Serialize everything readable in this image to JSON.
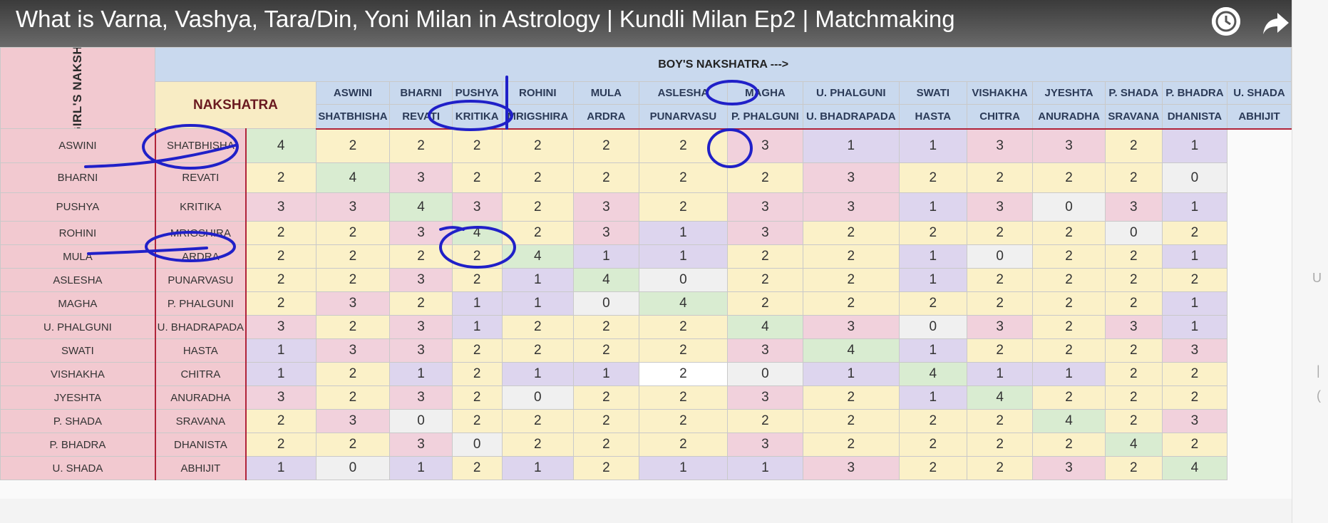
{
  "video": {
    "title": "What is Varna, Vashya, Tara/Din, Yoni Milan in Astrology | Kundli Milan Ep2 | Matchmaking"
  },
  "sheet": {
    "boy_header": "BOY'S NAKSHATRA --->",
    "girl_header": "<-----GIRL'S NAKSHATRA",
    "nakshatra_header": "NAKSHATRA",
    "columns": [
      {
        "top": "ASWINI",
        "bottom": "SHATBHISHA"
      },
      {
        "top": "BHARNI",
        "bottom": "REVATI"
      },
      {
        "top": "PUSHYA",
        "bottom": "KRITIKA"
      },
      {
        "top": "ROHINI",
        "bottom": "MRIGSHIRA"
      },
      {
        "top": "MULA",
        "bottom": "ARDRA"
      },
      {
        "top": "ASLESHA",
        "bottom": "PUNARVASU"
      },
      {
        "top": "MAGHA",
        "bottom": "P. PHALGUNI"
      },
      {
        "top": "U. PHALGUNI",
        "bottom": "U. BHADRAPADA"
      },
      {
        "top": "SWATI",
        "bottom": "HASTA"
      },
      {
        "top": "VISHAKHA",
        "bottom": "CHITRA"
      },
      {
        "top": "JYESHTA",
        "bottom": "ANURADHA"
      },
      {
        "top": "P. SHADA",
        "bottom": "SRAVANA"
      },
      {
        "top": "P. BHADRA",
        "bottom": "DHANISTA"
      },
      {
        "top": "U. SHADA",
        "bottom": "ABHIJIT"
      }
    ],
    "rows": [
      {
        "a": "ASWINI",
        "b": "SHATBHISHA",
        "values": [
          "4",
          "2",
          "2",
          "2",
          "2",
          "2",
          "2",
          "3",
          "1",
          "1",
          "3",
          "3",
          "2",
          "1"
        ],
        "colors": [
          "g",
          "y",
          "y",
          "y",
          "y",
          "y",
          "y",
          "p",
          "l",
          "l",
          "p",
          "p",
          "y",
          "l"
        ]
      },
      {
        "a": "BHARNI",
        "b": "REVATI",
        "values": [
          "2",
          "4",
          "3",
          "2",
          "2",
          "2",
          "2",
          "2",
          "3",
          "2",
          "2",
          "2",
          "2",
          "0"
        ],
        "colors": [
          "y",
          "g",
          "p",
          "y",
          "y",
          "y",
          "y",
          "y",
          "p",
          "y",
          "y",
          "y",
          "y",
          "w"
        ]
      },
      {
        "a": "PUSHYA",
        "b": "KRITIKA",
        "values": [
          "3",
          "3",
          "4",
          "3",
          "2",
          "3",
          "2",
          "3",
          "3",
          "1",
          "3",
          "0",
          "3",
          "1"
        ],
        "colors": [
          "p",
          "p",
          "g",
          "p",
          "y",
          "p",
          "y",
          "p",
          "p",
          "l",
          "p",
          "w",
          "p",
          "l"
        ]
      },
      {
        "a": "ROHINI",
        "b": "MRIGSHIRA",
        "values": [
          "2",
          "2",
          "3",
          "4",
          "2",
          "3",
          "1",
          "3",
          "2",
          "2",
          "2",
          "2",
          "0",
          "2"
        ],
        "colors": [
          "y",
          "y",
          "p",
          "g",
          "y",
          "p",
          "l",
          "p",
          "y",
          "y",
          "y",
          "y",
          "w",
          "y"
        ]
      },
      {
        "a": "MULA",
        "b": "ARDRA",
        "values": [
          "2",
          "2",
          "2",
          "2",
          "4",
          "1",
          "1",
          "2",
          "2",
          "1",
          "0",
          "2",
          "2",
          "1"
        ],
        "colors": [
          "y",
          "y",
          "y",
          "y",
          "g",
          "l",
          "l",
          "y",
          "y",
          "l",
          "w",
          "y",
          "y",
          "l"
        ]
      },
      {
        "a": "ASLESHA",
        "b": "PUNARVASU",
        "values": [
          "2",
          "2",
          "3",
          "2",
          "1",
          "4",
          "0",
          "2",
          "2",
          "1",
          "2",
          "2",
          "2",
          "2"
        ],
        "colors": [
          "y",
          "y",
          "p",
          "y",
          "l",
          "g",
          "w",
          "y",
          "y",
          "l",
          "y",
          "y",
          "y",
          "y"
        ]
      },
      {
        "a": "MAGHA",
        "b": "P. PHALGUNI",
        "values": [
          "2",
          "3",
          "2",
          "1",
          "1",
          "0",
          "4",
          "2",
          "2",
          "2",
          "2",
          "2",
          "2",
          "1"
        ],
        "colors": [
          "y",
          "p",
          "y",
          "l",
          "l",
          "w",
          "g",
          "y",
          "y",
          "y",
          "y",
          "y",
          "y",
          "l"
        ]
      },
      {
        "a": "U. PHALGUNI",
        "b": "U. BHADRAPADA",
        "values": [
          "3",
          "2",
          "3",
          "1",
          "2",
          "2",
          "2",
          "4",
          "3",
          "0",
          "3",
          "2",
          "3",
          "1"
        ],
        "colors": [
          "p",
          "y",
          "p",
          "l",
          "y",
          "y",
          "y",
          "g",
          "p",
          "w",
          "p",
          "y",
          "p",
          "l"
        ]
      },
      {
        "a": "SWATI",
        "b": "HASTA",
        "values": [
          "1",
          "3",
          "3",
          "2",
          "2",
          "2",
          "2",
          "3",
          "4",
          "1",
          "2",
          "2",
          "2",
          "3"
        ],
        "colors": [
          "l",
          "p",
          "p",
          "y",
          "y",
          "y",
          "y",
          "p",
          "g",
          "l",
          "y",
          "y",
          "y",
          "p"
        ]
      },
      {
        "a": "VISHAKHA",
        "b": "CHITRA",
        "values": [
          "1",
          "2",
          "1",
          "2",
          "1",
          "1",
          "2",
          "0",
          "1",
          "4",
          "1",
          "1",
          "2",
          "2"
        ],
        "colors": [
          "l",
          "y",
          "l",
          "y",
          "l",
          "l",
          "W",
          "w",
          "l",
          "g",
          "l",
          "l",
          "y",
          "y"
        ]
      },
      {
        "a": "JYESHTA",
        "b": "ANURADHA",
        "values": [
          "3",
          "2",
          "3",
          "2",
          "0",
          "2",
          "2",
          "3",
          "2",
          "1",
          "4",
          "2",
          "2",
          "2"
        ],
        "colors": [
          "p",
          "y",
          "p",
          "y",
          "w",
          "y",
          "y",
          "p",
          "y",
          "l",
          "g",
          "y",
          "y",
          "y"
        ]
      },
      {
        "a": "P. SHADA",
        "b": "SRAVANA",
        "values": [
          "2",
          "3",
          "0",
          "2",
          "2",
          "2",
          "2",
          "2",
          "2",
          "2",
          "2",
          "4",
          "2",
          "3"
        ],
        "colors": [
          "y",
          "p",
          "w",
          "y",
          "y",
          "y",
          "y",
          "y",
          "y",
          "y",
          "y",
          "g",
          "y",
          "p"
        ]
      },
      {
        "a": "P. BHADRA",
        "b": "DHANISTA",
        "values": [
          "2",
          "2",
          "3",
          "0",
          "2",
          "2",
          "2",
          "3",
          "2",
          "2",
          "2",
          "2",
          "4",
          "2"
        ],
        "colors": [
          "y",
          "y",
          "p",
          "w",
          "y",
          "y",
          "y",
          "p",
          "y",
          "y",
          "y",
          "y",
          "g",
          "y"
        ]
      },
      {
        "a": "U. SHADA",
        "b": "ABHIJIT",
        "values": [
          "1",
          "0",
          "1",
          "2",
          "1",
          "2",
          "1",
          "1",
          "3",
          "2",
          "2",
          "3",
          "2",
          "4"
        ],
        "colors": [
          "l",
          "w",
          "l",
          "y",
          "l",
          "y",
          "l",
          "l",
          "p",
          "y",
          "y",
          "p",
          "y",
          "g"
        ]
      }
    ]
  },
  "colors": {
    "header_blue": "#c9d9ee",
    "row_pink": "#f2c9d0",
    "border_red": "#b0243a",
    "annotation_ink": "#2020c8"
  },
  "icons": {
    "clock": "clock-icon",
    "share": "share-icon"
  }
}
